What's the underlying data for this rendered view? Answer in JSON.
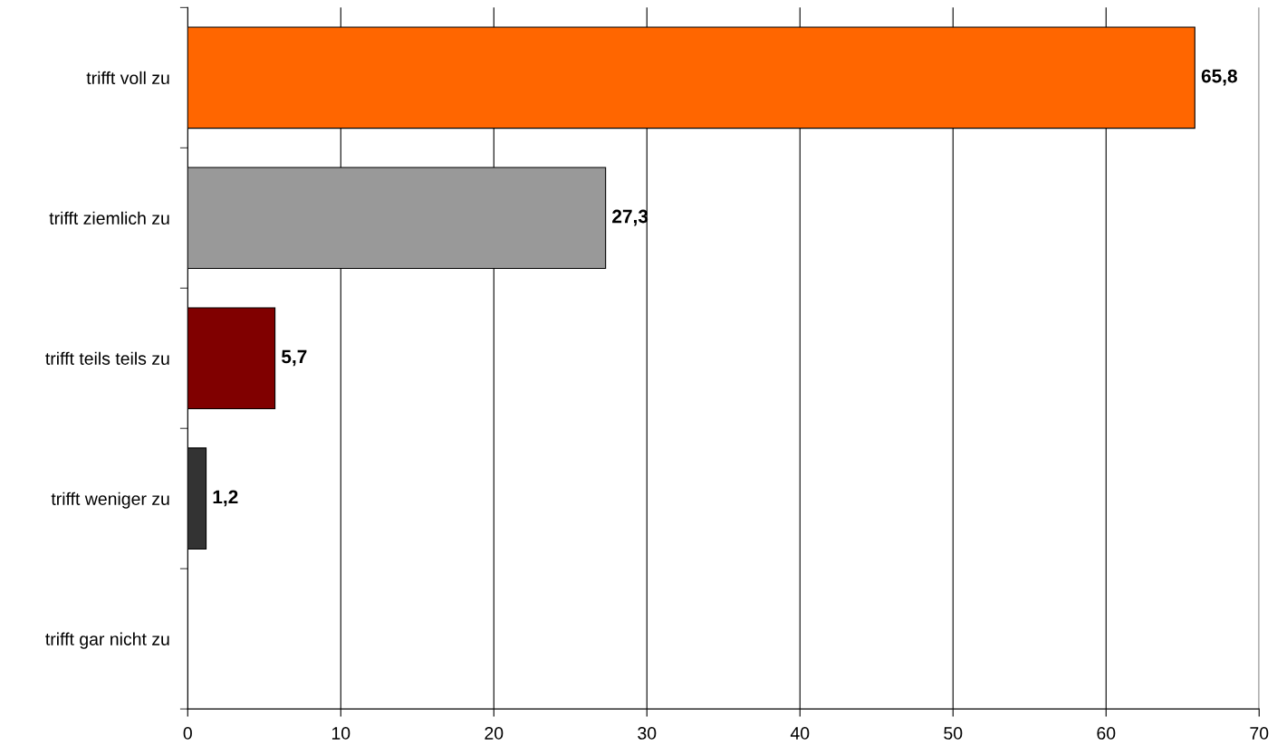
{
  "chart_data": {
    "type": "bar",
    "orientation": "horizontal",
    "categories": [
      "trifft voll zu",
      "trifft ziemlich zu",
      "trifft teils teils zu",
      "trifft weniger zu",
      "trifft gar nicht zu"
    ],
    "values": [
      65.8,
      27.3,
      5.7,
      1.2,
      null
    ],
    "colors": [
      "#ff6600",
      "#999999",
      "#800000",
      "#333333",
      "#666666"
    ],
    "value_labels": [
      "65,8",
      "27,3",
      "5,7",
      "1,2",
      null
    ],
    "xlim": [
      0,
      70
    ],
    "xticks": [
      0,
      10,
      20,
      30,
      40,
      50,
      60,
      70
    ],
    "grid": "x"
  }
}
